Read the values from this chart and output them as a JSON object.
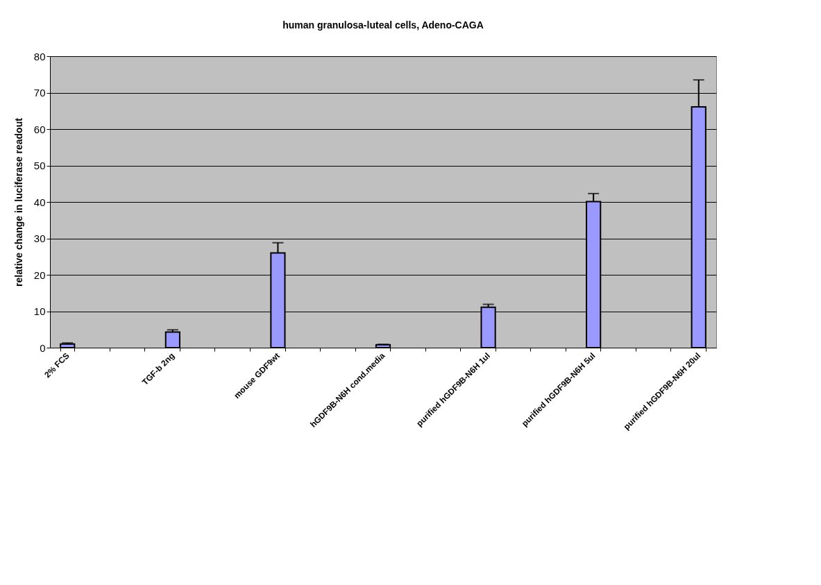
{
  "chart_data": {
    "type": "bar",
    "title": "human granulosa-luteal cells, Adeno-CAGA",
    "ylabel": "relative change in luciferase readout",
    "categories": [
      "2% FCS",
      null,
      null,
      "TGF-b 2ng",
      null,
      null,
      "mouse GDF9wt",
      null,
      null,
      "hGDF9B-N6H cond.media",
      null,
      null,
      "purified hGDF9B-N6H 1ul",
      null,
      null,
      "purified hGDF9B-N6H 5ul",
      null,
      null,
      "purified hGDF9B-N6H 20ul"
    ],
    "values": [
      1.0,
      null,
      null,
      4.3,
      null,
      null,
      26.0,
      null,
      null,
      0.8,
      null,
      null,
      11.1,
      null,
      null,
      40.1,
      null,
      null,
      66.1
    ],
    "errors": [
      [
        1.0,
        1.3
      ],
      null,
      null,
      [
        4.3,
        4.9
      ],
      null,
      null,
      [
        26.0,
        28.8
      ],
      null,
      null,
      [
        0.8,
        0.9
      ],
      null,
      null,
      [
        11.1,
        11.9
      ],
      null,
      null,
      [
        40.1,
        42.3
      ],
      null,
      null,
      [
        66.1,
        73.5
      ]
    ],
    "color": "#9999ff",
    "ylim": [
      0,
      80
    ],
    "yticks": [
      0,
      10,
      20,
      30,
      40,
      50,
      60,
      70,
      80
    ],
    "grid": "y"
  }
}
